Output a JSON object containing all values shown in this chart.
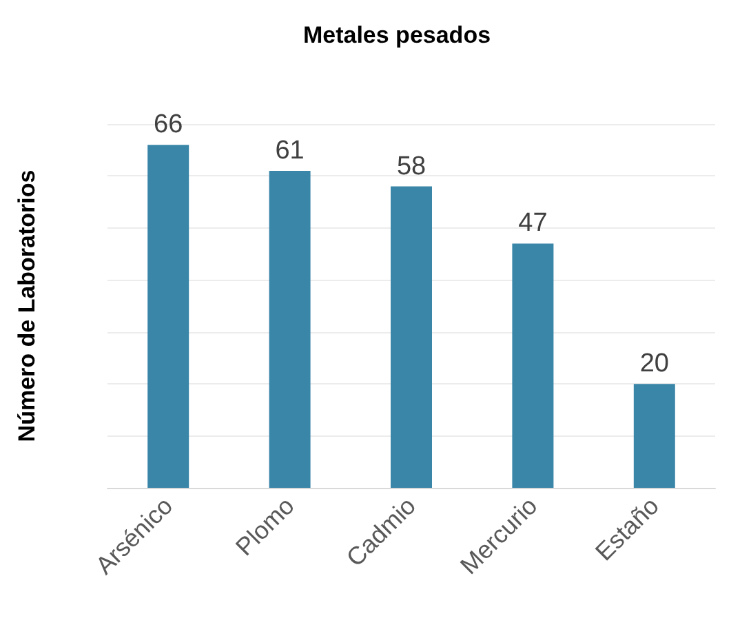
{
  "chart_data": {
    "type": "bar",
    "title": "Metales pesados",
    "ylabel": "Número de Laboratorios",
    "categories": [
      "Arsénico",
      "Plomo",
      "Cadmio",
      "Mercurio",
      "Estaño"
    ],
    "values": [
      66,
      61,
      58,
      47,
      20
    ],
    "color": "#3a86a8",
    "ylim": [
      0,
      70
    ],
    "yticks": [
      {
        "value": 0,
        "label": null
      },
      {
        "value": 10,
        "label": null
      },
      {
        "value": 20,
        "label": null
      },
      {
        "value": 30,
        "label": null
      },
      {
        "value": 40,
        "label": null
      },
      {
        "value": 50,
        "label": null
      },
      {
        "value": 60,
        "label": null
      },
      {
        "value": 70,
        "label": null
      }
    ],
    "tick_labels": "x",
    "grid": "y",
    "data_labels": true
  }
}
